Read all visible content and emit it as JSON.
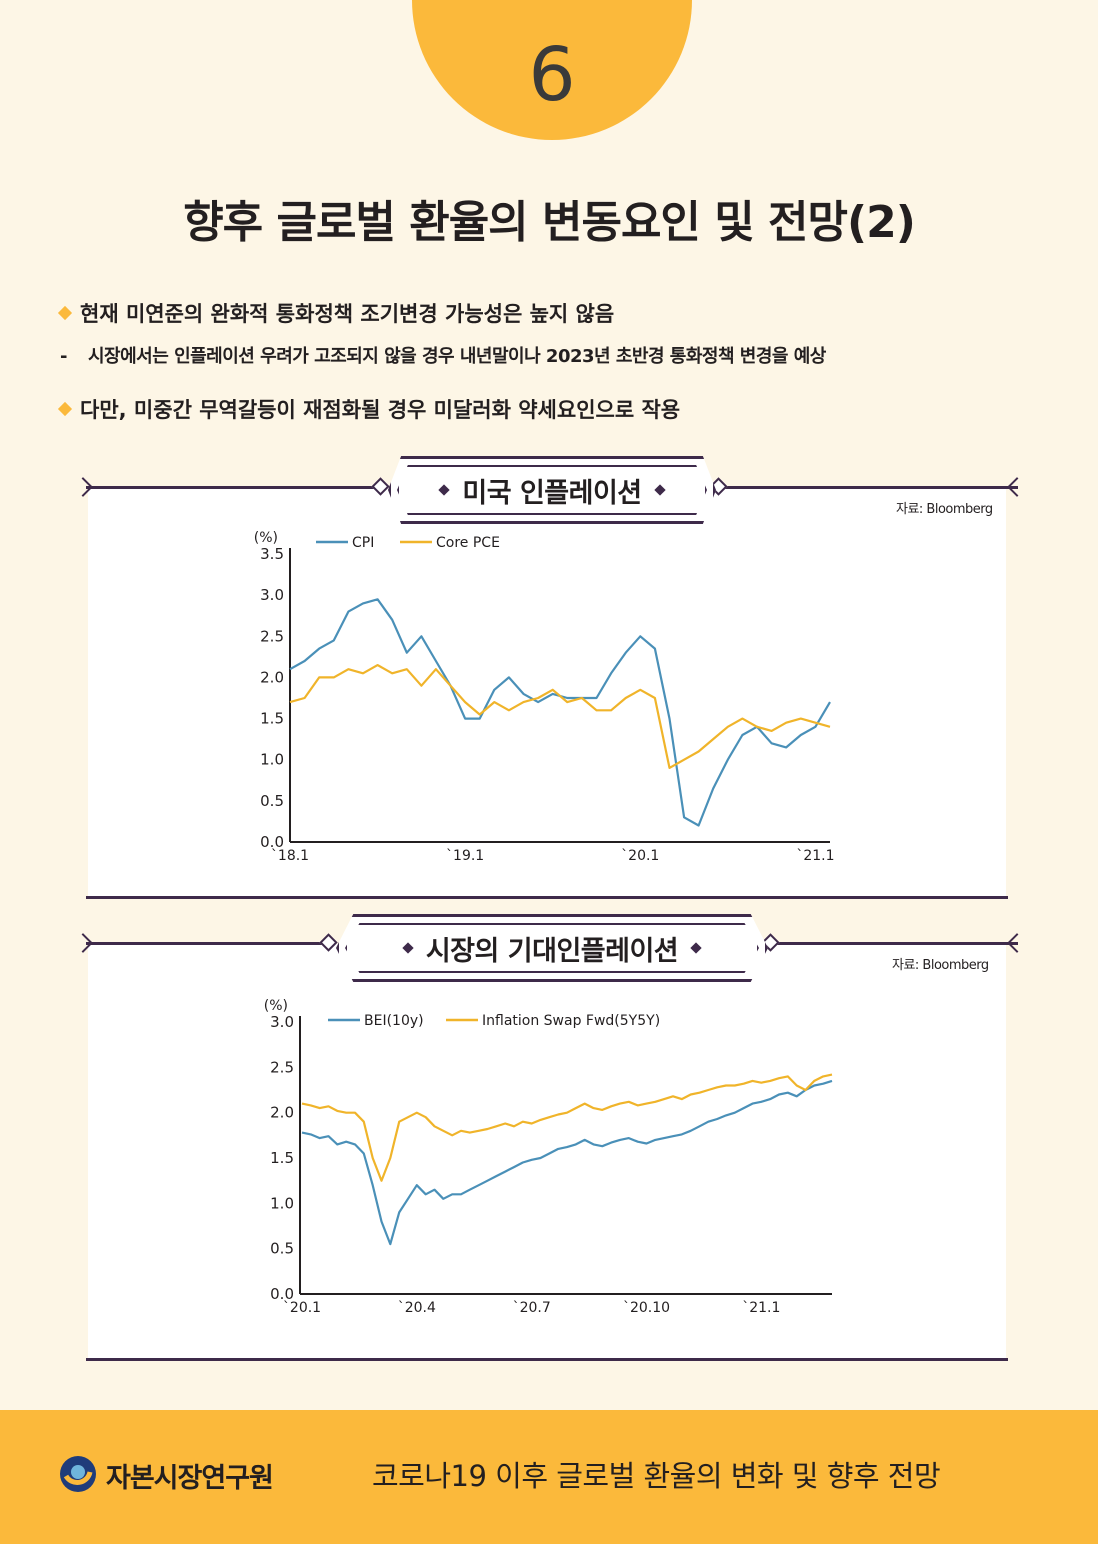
{
  "page": {
    "number": "6",
    "title": "향후 글로벌 환율의 변동요인 및 전망(2)"
  },
  "bullets": {
    "b1": {
      "mark": "◆",
      "text": "현재 미연준의 완화적 통화정책 조기변경 가능성은 높지 않음"
    },
    "b2": {
      "mark": "-",
      "text": "시장에서는 인플레이션 우려가 고조되지 않을 경우 내년말이나 2023년 초반경 통화정책 변경을 예상"
    },
    "b3": {
      "mark": "◆",
      "text": "다만, 미중간 무역갈등이 재점화될 경우 미달러화 약세요인으로 작용"
    }
  },
  "colors": {
    "accent": "#fbb93b",
    "frame": "#3e2a4a",
    "series_blue": "#4a90b8",
    "series_gold": "#f0b42a"
  },
  "panels": {
    "p1": {
      "title": "미국 인플레이션",
      "source": "자료: Bloomberg"
    },
    "p2": {
      "title": "시장의 기대인플레이션",
      "source": "자료: Bloomberg"
    }
  },
  "chart_data": [
    {
      "type": "line",
      "title": "미국 인플레이션",
      "ylabel": "(%)",
      "ylim": [
        0,
        3.5
      ],
      "yticks": [
        "0.0",
        "0.5",
        "1.0",
        "1.5",
        "2.0",
        "2.5",
        "3.0",
        "3.5"
      ],
      "xticks": [
        {
          "label": "`18.1",
          "x": 0
        },
        {
          "label": "`19.1",
          "x": 12
        },
        {
          "label": "`20.1",
          "x": 24
        },
        {
          "label": "`21.1",
          "x": 36
        }
      ],
      "legend": "top-left",
      "grid": false,
      "series": [
        {
          "name": "CPI",
          "color": "#4a90b8",
          "values": [
            2.1,
            2.2,
            2.35,
            2.45,
            2.8,
            2.9,
            2.95,
            2.7,
            2.3,
            2.5,
            2.2,
            1.9,
            1.5,
            1.5,
            1.85,
            2.0,
            1.8,
            1.7,
            1.8,
            1.75,
            1.75,
            1.75,
            2.05,
            2.3,
            2.5,
            2.35,
            1.5,
            0.3,
            0.2,
            0.65,
            1.0,
            1.3,
            1.4,
            1.2,
            1.15,
            1.3,
            1.4,
            1.7
          ]
        },
        {
          "name": "Core PCE",
          "color": "#f0b42a",
          "values": [
            1.7,
            1.75,
            2.0,
            2.0,
            2.1,
            2.05,
            2.15,
            2.05,
            2.1,
            1.9,
            2.1,
            1.9,
            1.7,
            1.55,
            1.7,
            1.6,
            1.7,
            1.75,
            1.85,
            1.7,
            1.75,
            1.6,
            1.6,
            1.75,
            1.85,
            1.75,
            0.9,
            1.0,
            1.1,
            1.25,
            1.4,
            1.5,
            1.4,
            1.35,
            1.45,
            1.5,
            1.45,
            1.4
          ]
        }
      ]
    },
    {
      "type": "line",
      "title": "시장의 기대인플레이션",
      "ylabel": "(%)",
      "ylim": [
        0,
        3.0
      ],
      "yticks": [
        "0.0",
        "0.5",
        "1.0",
        "1.5",
        "2.0",
        "2.5",
        "3.0"
      ],
      "xticks": [
        {
          "label": "`20.1",
          "x": 0
        },
        {
          "label": "`20.4",
          "x": 13
        },
        {
          "label": "`20.7",
          "x": 26
        },
        {
          "label": "`20.10",
          "x": 39
        },
        {
          "label": "`21.1",
          "x": 52
        }
      ],
      "legend": "top-left",
      "grid": false,
      "series": [
        {
          "name": "BEI(10y)",
          "color": "#4a90b8",
          "values": [
            1.78,
            1.76,
            1.72,
            1.74,
            1.65,
            1.68,
            1.65,
            1.55,
            1.2,
            0.8,
            0.55,
            0.9,
            1.05,
            1.2,
            1.1,
            1.15,
            1.05,
            1.1,
            1.1,
            1.15,
            1.2,
            1.25,
            1.3,
            1.35,
            1.4,
            1.45,
            1.48,
            1.5,
            1.55,
            1.6,
            1.62,
            1.65,
            1.7,
            1.65,
            1.63,
            1.67,
            1.7,
            1.72,
            1.68,
            1.66,
            1.7,
            1.72,
            1.74,
            1.76,
            1.8,
            1.85,
            1.9,
            1.93,
            1.97,
            2.0,
            2.05,
            2.1,
            2.12,
            2.15,
            2.2,
            2.22,
            2.18,
            2.25,
            2.3,
            2.32,
            2.35
          ]
        },
        {
          "name": "Inflation Swap Fwd(5Y5Y)",
          "color": "#f0b42a",
          "values": [
            2.1,
            2.08,
            2.05,
            2.07,
            2.02,
            2.0,
            2.0,
            1.9,
            1.5,
            1.25,
            1.5,
            1.9,
            1.95,
            2.0,
            1.95,
            1.85,
            1.8,
            1.75,
            1.8,
            1.78,
            1.8,
            1.82,
            1.85,
            1.88,
            1.85,
            1.9,
            1.88,
            1.92,
            1.95,
            1.98,
            2.0,
            2.05,
            2.1,
            2.05,
            2.03,
            2.07,
            2.1,
            2.12,
            2.08,
            2.1,
            2.12,
            2.15,
            2.18,
            2.15,
            2.2,
            2.22,
            2.25,
            2.28,
            2.3,
            2.3,
            2.32,
            2.35,
            2.33,
            2.35,
            2.38,
            2.4,
            2.3,
            2.25,
            2.35,
            2.4,
            2.42
          ]
        }
      ]
    }
  ],
  "footer": {
    "org": "자본시장연구원",
    "title": "코로나19 이후 글로벌 환율의 변화 및 향후 전망",
    "logo_icon": "kcmi-logo-icon"
  }
}
